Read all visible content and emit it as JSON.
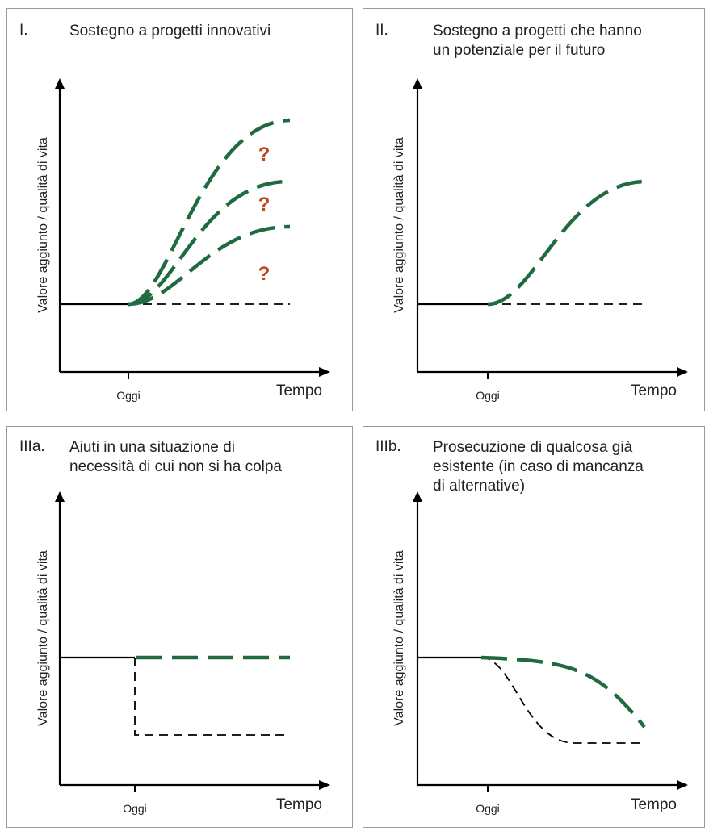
{
  "panels": [
    {
      "num": "I.",
      "title": "Sostegno a progetti innovativi"
    },
    {
      "num": "II.",
      "title": "Sostegno a progetti che hanno\nun potenziale per il futuro"
    },
    {
      "num": "IIIa.",
      "title": "Aiuti in una situazione di\nnecessità di cui non si ha colpa"
    },
    {
      "num": "IIIb.",
      "title": "Prosecuzione di qualcosa già\nesistente (in caso di mancanza\ndi alternative)"
    }
  ],
  "axis": {
    "y_label": "Valore aggiunto / qualità di vita",
    "x_label": "Tempo",
    "today_label": "Oggi"
  },
  "question_mark": "?",
  "colors": {
    "green": "#1f6b3f",
    "question": "#c0451b",
    "border": "#9a9a9a"
  }
}
